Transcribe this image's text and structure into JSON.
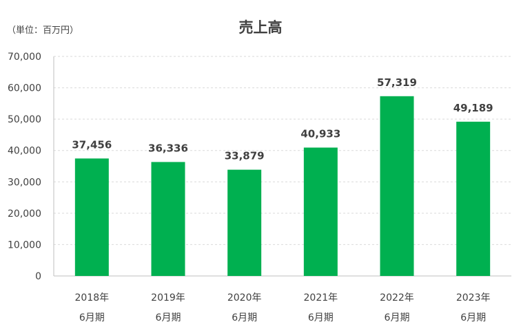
{
  "unit_label": "（単位：百万円）",
  "chart_data": {
    "type": "bar",
    "title": "売上高",
    "categories": [
      [
        "2018年",
        "6月期"
      ],
      [
        "2019年",
        "6月期"
      ],
      [
        "2020年",
        "6月期"
      ],
      [
        "2021年",
        "6月期"
      ],
      [
        "2022年",
        "6月期"
      ],
      [
        "2023年",
        "6月期"
      ]
    ],
    "values": [
      37456,
      36336,
      33879,
      40933,
      57319,
      49189
    ],
    "value_labels": [
      "37,456",
      "36,336",
      "33,879",
      "40,933",
      "57,319",
      "49,189"
    ],
    "yticks": [
      "0",
      "10,000",
      "20,000",
      "30,000",
      "40,000",
      "50,000",
      "60,000",
      "70,000"
    ],
    "ylim": [
      0,
      70000
    ],
    "grid": true,
    "bar_color": "#00b050"
  }
}
